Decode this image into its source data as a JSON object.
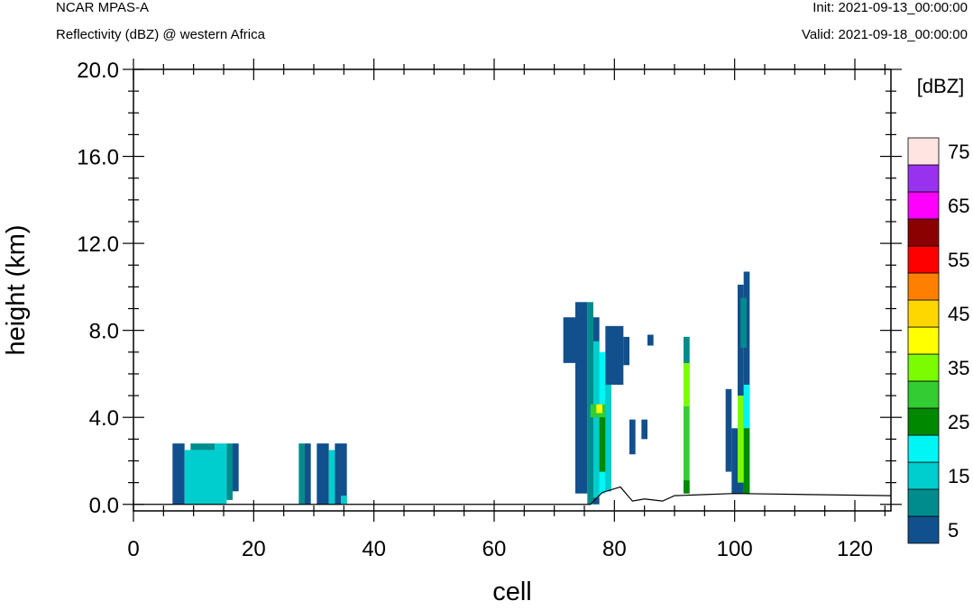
{
  "header": {
    "model": "NCAR MPAS-A",
    "field": "Reflectivity (dBZ) @ western Africa",
    "init": "Init: 2021-09-13_00:00:00",
    "valid": "Valid: 2021-09-18_00:00:00"
  },
  "chart_data": {
    "type": "heatmap",
    "xlabel": "cell",
    "ylabel": "height (km)",
    "xlim": [
      0,
      126
    ],
    "ylim": [
      -0.3,
      20.0
    ],
    "xticks": [
      "0",
      "20",
      "40",
      "60",
      "80",
      "100",
      "120"
    ],
    "xtick_values": [
      0,
      20,
      40,
      60,
      80,
      100,
      120
    ],
    "yticks": [
      "0.0",
      "4.0",
      "8.0",
      "12.0",
      "16.0",
      "20.0"
    ],
    "ytick_values": [
      0,
      4,
      8,
      12,
      16,
      20
    ],
    "colorbar": {
      "unit": "[dBZ]",
      "levels": [
        5,
        10,
        15,
        20,
        25,
        30,
        35,
        40,
        45,
        50,
        55,
        60,
        65,
        70,
        75
      ],
      "labels": [
        "5",
        "15",
        "25",
        "35",
        "45",
        "55",
        "65",
        "75"
      ],
      "colors": [
        "#11508d",
        "#008c8c",
        "#00cdcd",
        "#00f5f5",
        "#008800",
        "#33cc33",
        "#7cfc00",
        "#ffff00",
        "#ffd700",
        "#ff8000",
        "#ff0000",
        "#8b0000",
        "#ff00ff",
        "#9932ee",
        "#ffe4e1"
      ]
    },
    "terrain_km": [
      [
        0,
        0.0
      ],
      [
        76,
        0.0
      ],
      [
        78,
        0.55
      ],
      [
        81,
        0.8
      ],
      [
        83,
        0.15
      ],
      [
        85,
        0.25
      ],
      [
        88,
        0.15
      ],
      [
        90,
        0.4
      ],
      [
        95,
        0.45
      ],
      [
        100,
        0.5
      ],
      [
        126,
        0.4
      ]
    ],
    "cells": [
      {
        "x0": 6.5,
        "x1": 8.5,
        "y0": 0,
        "y1": 2.8,
        "dbz": 5
      },
      {
        "x0": 8.5,
        "x1": 15.5,
        "y0": 0,
        "y1": 2.5,
        "dbz": 15
      },
      {
        "x0": 9.5,
        "x1": 13.5,
        "y0": 2.5,
        "y1": 2.8,
        "dbz": 10
      },
      {
        "x0": 13.5,
        "x1": 15.5,
        "y0": 2.5,
        "y1": 2.8,
        "dbz": 15
      },
      {
        "x0": 15.5,
        "x1": 16.5,
        "y0": 0.2,
        "y1": 2.8,
        "dbz": 10
      },
      {
        "x0": 16.5,
        "x1": 17.5,
        "y0": 0.6,
        "y1": 2.8,
        "dbz": 5
      },
      {
        "x0": 27.5,
        "x1": 28.5,
        "y0": 0,
        "y1": 2.8,
        "dbz": 10
      },
      {
        "x0": 28.5,
        "x1": 29.5,
        "y0": 0,
        "y1": 2.8,
        "dbz": 5
      },
      {
        "x0": 30.5,
        "x1": 32.5,
        "y0": 0,
        "y1": 2.8,
        "dbz": 5
      },
      {
        "x0": 32.5,
        "x1": 33.5,
        "y0": 0,
        "y1": 2.5,
        "dbz": 15
      },
      {
        "x0": 33.5,
        "x1": 35.5,
        "y0": 0,
        "y1": 2.8,
        "dbz": 5
      },
      {
        "x0": 34.5,
        "x1": 35.5,
        "y0": 0,
        "y1": 0.4,
        "dbz": 15
      },
      {
        "x0": 71.5,
        "x1": 74.5,
        "y0": 6.5,
        "y1": 8.6,
        "dbz": 5
      },
      {
        "x0": 73.5,
        "x1": 75.5,
        "y0": 0.5,
        "y1": 9.3,
        "dbz": 5
      },
      {
        "x0": 75.5,
        "x1": 76.5,
        "y0": 0,
        "y1": 9.3,
        "dbz": 10
      },
      {
        "x0": 76.5,
        "x1": 77.5,
        "y0": 0,
        "y1": 8.6,
        "dbz": 5
      },
      {
        "x0": 76.5,
        "x1": 77.5,
        "y0": 0.3,
        "y1": 7.5,
        "dbz": 15
      },
      {
        "x0": 77.5,
        "x1": 78.5,
        "y0": 0.5,
        "y1": 7.0,
        "dbz": 20
      },
      {
        "x0": 77.5,
        "x1": 78.5,
        "y0": 1.5,
        "y1": 4.5,
        "dbz": 25
      },
      {
        "x0": 78.5,
        "x1": 79.5,
        "y0": 0.6,
        "y1": 8.2,
        "dbz": 5
      },
      {
        "x0": 78.5,
        "x1": 79.5,
        "y0": 0.6,
        "y1": 5.5,
        "dbz": 15
      },
      {
        "x0": 79.5,
        "x1": 81.5,
        "y0": 5.5,
        "y1": 8.2,
        "dbz": 5
      },
      {
        "x0": 76.0,
        "x1": 78.5,
        "y0": 4.0,
        "y1": 4.6,
        "dbz": 30
      },
      {
        "x0": 77.0,
        "x1": 78.0,
        "y0": 4.2,
        "y1": 4.6,
        "dbz": 40
      },
      {
        "x0": 81.5,
        "x1": 82.5,
        "y0": 6.4,
        "y1": 7.7,
        "dbz": 5
      },
      {
        "x0": 85.5,
        "x1": 86.5,
        "y0": 7.3,
        "y1": 7.8,
        "dbz": 5
      },
      {
        "x0": 82.5,
        "x1": 83.5,
        "y0": 2.3,
        "y1": 3.9,
        "dbz": 5
      },
      {
        "x0": 84.5,
        "x1": 85.5,
        "y0": 3.0,
        "y1": 3.9,
        "dbz": 5
      },
      {
        "x0": 91.5,
        "x1": 92.5,
        "y0": 0.5,
        "y1": 7.7,
        "dbz": 30
      },
      {
        "x0": 91.5,
        "x1": 92.5,
        "y0": 4.5,
        "y1": 6.5,
        "dbz": 35
      },
      {
        "x0": 91.5,
        "x1": 92.5,
        "y0": 6.5,
        "y1": 7.7,
        "dbz": 10
      },
      {
        "x0": 91.5,
        "x1": 92.5,
        "y0": 0.5,
        "y1": 1.1,
        "dbz": 25
      },
      {
        "x0": 98.5,
        "x1": 99.5,
        "y0": 1.5,
        "y1": 5.3,
        "dbz": 5
      },
      {
        "x0": 99.5,
        "x1": 100.5,
        "y0": 0.5,
        "y1": 3.5,
        "dbz": 5
      },
      {
        "x0": 100.5,
        "x1": 101.5,
        "y0": 0.5,
        "y1": 10.1,
        "dbz": 5
      },
      {
        "x0": 101.5,
        "x1": 102.5,
        "y0": 0.5,
        "y1": 10.7,
        "dbz": 5
      },
      {
        "x0": 101.0,
        "x1": 102.0,
        "y0": 7.2,
        "y1": 9.5,
        "dbz": 10
      },
      {
        "x0": 101.5,
        "x1": 102.5,
        "y0": 0.5,
        "y1": 5.5,
        "dbz": 20
      },
      {
        "x0": 101.5,
        "x1": 102.5,
        "y0": 0.5,
        "y1": 3.5,
        "dbz": 25
      },
      {
        "x0": 100.5,
        "x1": 101.5,
        "y0": 1.0,
        "y1": 5.0,
        "dbz": 35
      }
    ]
  }
}
